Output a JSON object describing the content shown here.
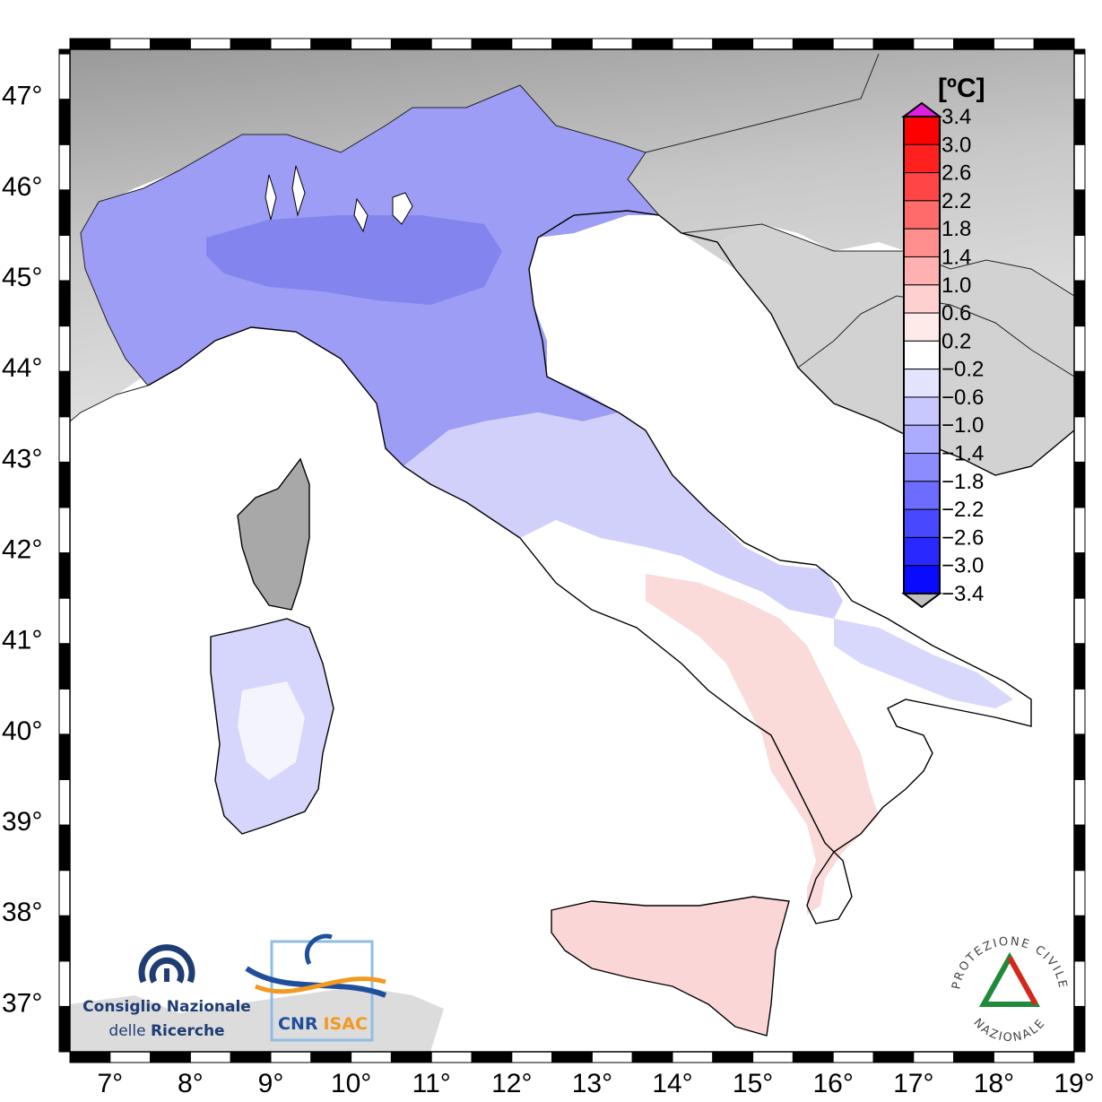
{
  "map": {
    "lon_ticks": [
      "7°",
      "8°",
      "9°",
      "10°",
      "11°",
      "12°",
      "13°",
      "14°",
      "15°",
      "16°",
      "17°",
      "18°",
      "19°"
    ],
    "lat_ticks": [
      "47°",
      "46°",
      "45°",
      "44°",
      "43°",
      "42°",
      "41°",
      "40°",
      "39°",
      "38°",
      "37°"
    ],
    "lon_range": [
      6.5,
      19.0
    ],
    "lat_range": [
      36.45,
      47.5
    ],
    "variable_unit": "[ºC]"
  },
  "colorbar": {
    "unit": "[ºC]",
    "labels": [
      "3.4",
      "3.0",
      "2.6",
      "2.2",
      "1.8",
      "1.4",
      "1.0",
      "0.6",
      "0.2",
      "−0.2",
      "−0.6",
      "−1.0",
      "−1.4",
      "−1.8",
      "−2.2",
      "−2.6",
      "−3.0",
      "−3.4"
    ],
    "colors": [
      "#ff0000",
      "#ff2020",
      "#ff4545",
      "#ff6a6a",
      "#ff8e8e",
      "#ffb0b0",
      "#ffd0d0",
      "#ffeaea",
      "#ffffff",
      "#e4e4ff",
      "#c8c8ff",
      "#acacff",
      "#8c8cff",
      "#6c6cff",
      "#4848ff",
      "#2828ff",
      "#0a0aff"
    ],
    "over_color": "#e020e0",
    "under_color": "#c0c0c0"
  },
  "logos": {
    "cnr_line1": "Consiglio Nazionale",
    "cnr_line2_a": "delle ",
    "cnr_line2_b": "Ricerche",
    "isac_a": "CNR",
    "isac_b": "ISAC",
    "pcn_top": "PROTEZIONE CIVILE",
    "pcn_bottom": "NAZIONALE",
    "cnr_color": "#1f3d74",
    "isac_orange": "#f29a1f"
  }
}
